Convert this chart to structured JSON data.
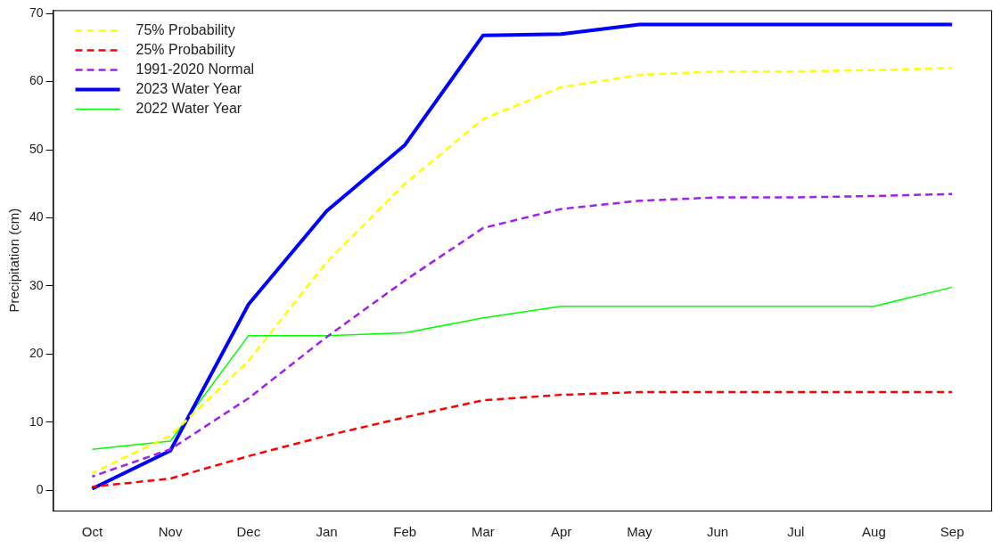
{
  "chart_data": {
    "type": "line",
    "ylabel": "Precipitation (cm)",
    "categories": [
      "Oct",
      "Nov",
      "Dec",
      "Jan",
      "Feb",
      "Mar",
      "Apr",
      "May",
      "Jun",
      "Jul",
      "Aug",
      "Sep"
    ],
    "ylim": [
      -3,
      70.5
    ],
    "yticks": [
      0,
      10,
      20,
      30,
      40,
      50,
      60,
      70
    ],
    "grid": false,
    "legend": "top left",
    "marker": "none",
    "series": [
      {
        "name": "75% Probability",
        "color": "#ffff00",
        "line_style": "dashed",
        "values": [
          2.5,
          8,
          19,
          33.5,
          45,
          54.5,
          59.2,
          61,
          61.5,
          61.5,
          61.7,
          62
        ]
      },
      {
        "name": "25% Probability",
        "color": "#ff0000",
        "line_style": "dashed",
        "values": [
          0.5,
          1.7,
          5,
          8,
          10.7,
          13.2,
          14,
          14.4,
          14.4,
          14.4,
          14.4,
          14.4
        ]
      },
      {
        "name": "1991-2020 Normal",
        "color": "#a020f0",
        "line_style": "dashed",
        "values": [
          2,
          6,
          13.5,
          22.5,
          30.8,
          38.5,
          41.3,
          42.5,
          43,
          43,
          43.2,
          43.5
        ]
      },
      {
        "name": "2023 Water Year",
        "color": "#0000ff",
        "line_style": "solid",
        "values": [
          0.2,
          5.8,
          27.3,
          41,
          50.7,
          66.8,
          67,
          68.4,
          68.4,
          68.4,
          68.4,
          68.4
        ]
      },
      {
        "name": "2022 Water Year",
        "color": "#00ff00",
        "line_style": "solid",
        "values": [
          6,
          7.2,
          22.7,
          22.7,
          23.1,
          25.3,
          27,
          27,
          27,
          27,
          27,
          29.8
        ]
      }
    ]
  }
}
